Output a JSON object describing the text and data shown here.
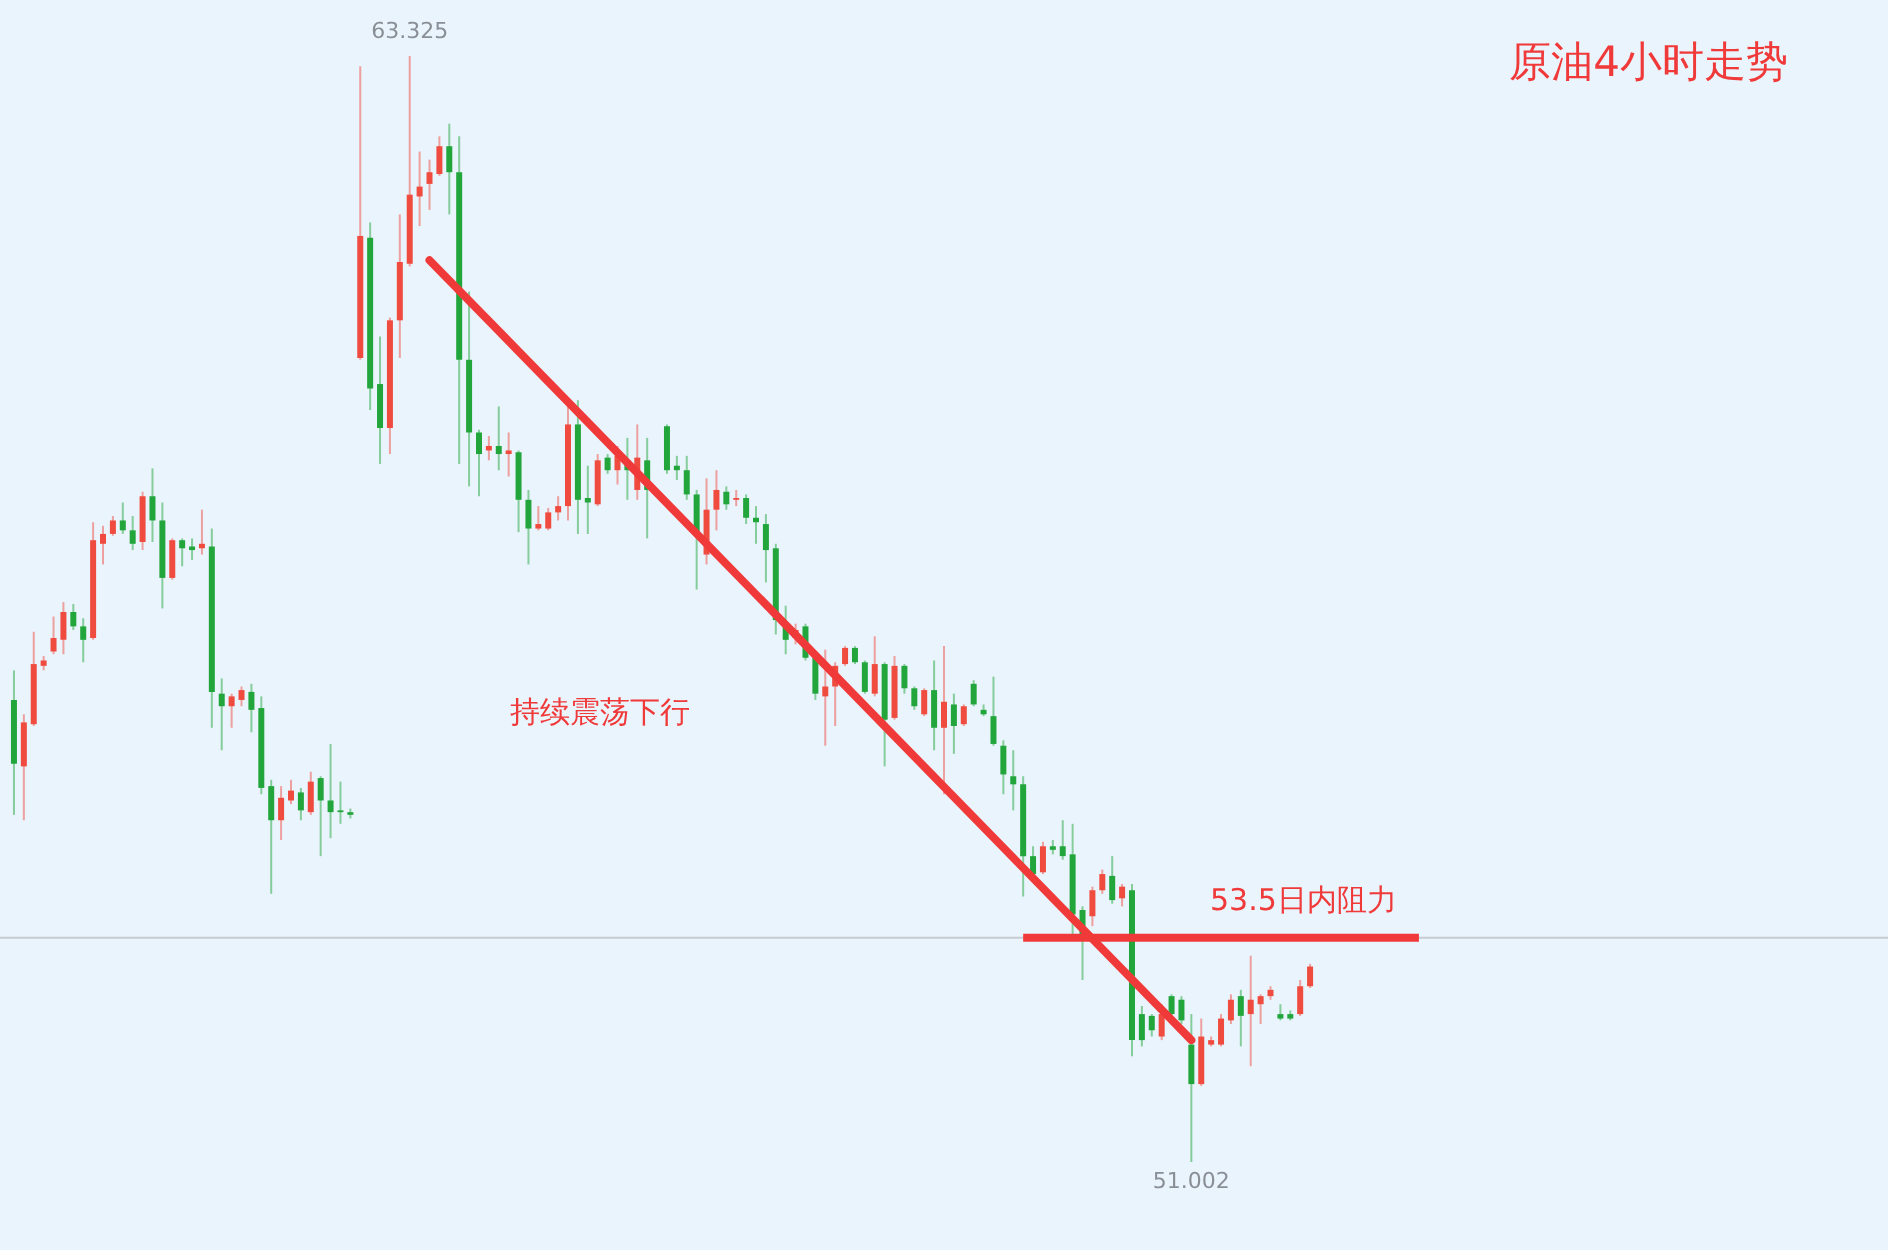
{
  "chart_data": {
    "type": "candlestick",
    "title": "原油4小时走势",
    "categories": [
      null,
      null,
      null,
      null,
      null,
      null,
      null,
      null,
      null,
      null,
      null,
      null,
      null,
      null,
      null,
      null,
      null,
      null,
      null,
      null,
      null,
      null,
      null,
      null,
      null,
      null,
      null,
      null,
      null,
      null,
      null,
      null,
      null,
      null,
      null,
      null,
      null,
      null,
      null,
      null,
      null,
      null,
      null,
      null,
      null,
      null,
      null,
      null,
      null,
      null,
      null,
      null,
      null,
      null,
      null,
      null,
      null,
      null,
      null,
      null,
      null,
      null,
      null,
      null,
      null,
      null,
      null,
      null,
      null,
      null,
      null,
      null,
      null,
      null,
      null,
      null,
      null,
      null,
      null,
      null,
      null,
      null,
      null,
      null,
      null,
      null,
      null,
      null,
      null,
      null,
      null,
      null,
      null,
      null,
      null,
      null,
      null,
      null,
      null,
      null,
      null,
      null,
      null,
      null,
      null,
      null,
      null,
      null,
      null,
      null,
      null,
      null,
      null,
      null,
      null,
      null,
      null,
      null,
      null,
      null,
      null,
      null,
      null,
      null,
      null,
      null,
      null,
      null,
      null,
      null,
      null,
      null
    ],
    "ohlc": [
      [
        56.15,
        56.48,
        54.87,
        55.44
      ],
      [
        55.41,
        55.99,
        54.81,
        55.9
      ],
      [
        55.88,
        56.91,
        55.86,
        56.55
      ],
      [
        56.53,
        56.64,
        56.48,
        56.59
      ],
      [
        56.69,
        57.08,
        56.66,
        56.84
      ],
      [
        56.82,
        57.24,
        56.66,
        57.13
      ],
      [
        57.13,
        57.22,
        56.93,
        56.97
      ],
      [
        56.97,
        57.06,
        56.57,
        56.82
      ],
      [
        56.84,
        58.13,
        56.82,
        57.93
      ],
      [
        57.89,
        58.09,
        57.66,
        58.0
      ],
      [
        58.0,
        58.2,
        57.98,
        58.15
      ],
      [
        58.15,
        58.35,
        58.0,
        58.04
      ],
      [
        58.04,
        58.2,
        57.82,
        57.89
      ],
      [
        57.91,
        58.47,
        57.82,
        58.42
      ],
      [
        58.42,
        58.73,
        57.91,
        58.15
      ],
      [
        58.15,
        58.35,
        57.17,
        57.51
      ],
      [
        57.51,
        57.95,
        57.49,
        57.93
      ],
      [
        57.93,
        57.95,
        57.64,
        57.84
      ],
      [
        57.86,
        57.95,
        57.71,
        57.82
      ],
      [
        57.84,
        58.27,
        57.77,
        57.89
      ],
      [
        57.86,
        58.06,
        55.84,
        56.24
      ],
      [
        56.22,
        56.39,
        55.59,
        56.08
      ],
      [
        56.08,
        56.22,
        55.84,
        56.19
      ],
      [
        56.15,
        56.3,
        56.08,
        56.26
      ],
      [
        56.24,
        56.33,
        55.79,
        56.04
      ],
      [
        56.06,
        56.19,
        55.1,
        55.17
      ],
      [
        55.19,
        55.26,
        53.99,
        54.81
      ],
      [
        54.81,
        55.19,
        54.59,
        55.06
      ],
      [
        55.03,
        55.26,
        54.99,
        55.14
      ],
      [
        55.12,
        55.17,
        54.81,
        54.92
      ],
      [
        54.9,
        55.35,
        54.87,
        55.24
      ],
      [
        55.28,
        55.3,
        54.41,
        55.03
      ],
      [
        55.03,
        55.66,
        54.61,
        54.9
      ],
      [
        54.92,
        55.24,
        54.77,
        54.9
      ],
      [
        54.9,
        54.94,
        54.83,
        54.87
      ],
      [
        59.96,
        63.21,
        59.94,
        61.32
      ],
      [
        61.3,
        61.47,
        59.38,
        59.62
      ],
      [
        59.67,
        60.2,
        58.78,
        59.18
      ],
      [
        59.18,
        60.41,
        58.89,
        60.38
      ],
      [
        60.38,
        61.56,
        59.96,
        61.03
      ],
      [
        61.01,
        63.325,
        60.98,
        61.78
      ],
      [
        61.76,
        62.26,
        61.43,
        61.87
      ],
      [
        61.9,
        62.17,
        61.61,
        62.03
      ],
      [
        62.01,
        62.43,
        61.99,
        62.32
      ],
      [
        62.32,
        62.57,
        61.56,
        62.03
      ],
      [
        62.03,
        62.43,
        58.78,
        59.94
      ],
      [
        59.94,
        60.7,
        58.53,
        59.13
      ],
      [
        59.13,
        59.16,
        58.42,
        58.89
      ],
      [
        58.93,
        59.09,
        58.82,
        58.98
      ],
      [
        58.98,
        59.42,
        58.71,
        58.89
      ],
      [
        58.89,
        59.13,
        58.64,
        58.93
      ],
      [
        58.91,
        58.93,
        58.02,
        58.38
      ],
      [
        58.38,
        58.49,
        57.66,
        58.06
      ],
      [
        58.06,
        58.31,
        58.04,
        58.11
      ],
      [
        58.06,
        58.29,
        58.04,
        58.24
      ],
      [
        58.24,
        58.42,
        58.15,
        58.31
      ],
      [
        58.31,
        59.42,
        58.15,
        59.22
      ],
      [
        59.22,
        59.49,
        58.0,
        58.38
      ],
      [
        58.4,
        58.76,
        58.0,
        58.35
      ],
      [
        58.33,
        58.89,
        58.31,
        58.82
      ],
      [
        58.85,
        58.89,
        58.67,
        58.71
      ],
      [
        58.71,
        58.98,
        58.55,
        58.87
      ],
      [
        58.82,
        59.07,
        58.38,
        58.71
      ],
      [
        58.49,
        59.22,
        58.38,
        58.85
      ],
      [
        58.82,
        59.07,
        57.95,
        58.49
      ],
      null,
      [
        59.2,
        59.22,
        58.67,
        58.71
      ],
      [
        58.76,
        58.87,
        58.6,
        58.71
      ],
      [
        58.71,
        58.87,
        58.38,
        58.44
      ],
      [
        58.44,
        58.49,
        57.38,
        58.0
      ],
      [
        57.77,
        58.62,
        57.66,
        58.27
      ],
      [
        58.27,
        58.71,
        58.04,
        58.49
      ],
      [
        58.47,
        58.53,
        58.27,
        58.33
      ],
      [
        58.38,
        58.49,
        58.31,
        58.4
      ],
      [
        58.4,
        58.44,
        58.11,
        58.18
      ],
      [
        58.18,
        58.31,
        57.89,
        58.13
      ],
      [
        58.11,
        58.22,
        57.46,
        57.82
      ],
      [
        57.84,
        57.89,
        56.88,
        57.04
      ],
      [
        57.0,
        57.2,
        56.66,
        56.82
      ],
      [
        56.84,
        57.0,
        56.77,
        56.93
      ],
      [
        56.97,
        57.0,
        56.59,
        56.62
      ],
      [
        56.62,
        56.64,
        56.15,
        56.22
      ],
      [
        56.19,
        56.71,
        55.64,
        56.3
      ],
      [
        56.3,
        56.57,
        55.86,
        56.53
      ],
      [
        56.55,
        56.75,
        56.53,
        56.73
      ],
      [
        56.73,
        56.75,
        56.55,
        56.57
      ],
      [
        56.57,
        56.59,
        56.22,
        56.24
      ],
      [
        56.22,
        56.86,
        56.19,
        56.55
      ],
      [
        56.55,
        56.57,
        55.41,
        55.93
      ],
      [
        55.95,
        56.64,
        55.93,
        56.53
      ],
      [
        56.53,
        56.55,
        56.22,
        56.28
      ],
      [
        56.28,
        56.3,
        56.04,
        56.08
      ],
      [
        55.99,
        56.28,
        55.97,
        56.26
      ],
      [
        56.26,
        56.59,
        55.59,
        55.84
      ],
      [
        55.84,
        56.75,
        55.1,
        56.13
      ],
      [
        56.1,
        56.22,
        55.55,
        55.86
      ],
      [
        55.88,
        56.1,
        55.86,
        56.08
      ],
      [
        56.33,
        56.37,
        56.08,
        56.1
      ],
      [
        56.04,
        56.1,
        55.97,
        55.99
      ],
      [
        55.97,
        56.41,
        55.64,
        55.66
      ],
      [
        55.64,
        55.7,
        55.1,
        55.32
      ],
      [
        55.3,
        55.59,
        54.92,
        55.21
      ],
      [
        55.21,
        55.3,
        53.96,
        54.41
      ],
      [
        54.41,
        54.52,
        54.19,
        54.21
      ],
      [
        54.23,
        54.57,
        54.21,
        54.52
      ],
      [
        54.52,
        54.59,
        54.43,
        54.48
      ],
      [
        54.52,
        54.81,
        54.37,
        54.41
      ],
      [
        54.43,
        54.77,
        53.47,
        53.76
      ],
      [
        53.81,
        53.85,
        53.03,
        53.54
      ],
      [
        53.74,
        54.07,
        53.63,
        54.03
      ],
      [
        54.03,
        54.26,
        53.99,
        54.21
      ],
      [
        54.19,
        54.41,
        53.88,
        53.92
      ],
      [
        53.94,
        54.1,
        53.85,
        54.07
      ],
      [
        54.03,
        54.1,
        52.18,
        52.36
      ],
      [
        52.65,
        52.74,
        52.29,
        52.36
      ],
      [
        52.63,
        52.65,
        52.4,
        52.47
      ],
      [
        52.4,
        52.76,
        52.36,
        52.65
      ],
      [
        52.85,
        52.87,
        52.58,
        52.65
      ],
      [
        52.81,
        52.85,
        52.54,
        52.58
      ],
      [
        52.31,
        52.65,
        51.002,
        51.87
      ],
      [
        51.87,
        52.6,
        51.85,
        52.4
      ],
      [
        52.31,
        52.4,
        52.29,
        52.36
      ],
      [
        52.31,
        52.65,
        52.29,
        52.6
      ],
      [
        52.58,
        52.87,
        52.54,
        52.81
      ],
      [
        52.85,
        52.92,
        52.29,
        52.63
      ],
      [
        52.65,
        53.3,
        52.07,
        52.81
      ],
      [
        52.76,
        52.87,
        52.54,
        52.85
      ],
      [
        52.85,
        52.96,
        52.81,
        52.92
      ],
      [
        52.65,
        52.76,
        52.58,
        52.6
      ],
      [
        52.65,
        52.69,
        52.58,
        52.6
      ],
      [
        52.65,
        53.03,
        52.63,
        52.96
      ],
      [
        52.96,
        53.21,
        52.94,
        53.18
      ]
    ],
    "series": [
      {
        "type": "line",
        "color": "#f03a3a",
        "values": [
          null,
          null,
          null,
          null,
          null,
          null,
          null,
          null,
          null,
          null,
          null,
          null,
          null,
          null,
          null,
          null,
          null,
          null,
          null,
          null,
          null,
          null,
          null,
          null,
          null,
          null,
          null,
          null,
          null,
          null,
          null,
          null,
          null,
          null,
          null,
          null,
          null,
          null,
          null,
          null,
          null,
          null,
          61.05,
          null,
          null,
          null,
          null,
          null,
          null,
          null,
          null,
          null,
          null,
          null,
          null,
          null,
          null,
          null,
          null,
          null,
          null,
          null,
          null,
          null,
          null,
          null,
          null,
          null,
          null,
          null,
          null,
          null,
          null,
          null,
          null,
          null,
          null,
          null,
          null,
          null,
          null,
          null,
          null,
          null,
          null,
          null,
          null,
          null,
          null,
          null,
          null,
          null,
          null,
          null,
          null,
          null,
          null,
          null,
          null,
          null,
          null,
          null,
          null,
          null,
          null,
          null,
          null,
          null,
          null,
          null,
          null,
          null,
          null,
          null,
          null,
          null,
          null,
          null,
          null,
          52.36,
          null,
          null,
          null,
          null,
          null,
          null,
          null,
          null,
          null,
          null,
          null,
          null
        ]
      }
    ],
    "ref_lines": [
      {
        "axis": "y",
        "value": 53.5,
        "color": "#c8ccd2"
      },
      {
        "axis": "y",
        "value": 53.5,
        "label": "53.5日内阻力",
        "color": "#f03a3a"
      }
    ],
    "annotations": [
      {
        "text": "63.325",
        "y": 63.325
      },
      {
        "text": "51.002",
        "y": 51.002
      },
      "持续震荡下行"
    ]
  }
}
